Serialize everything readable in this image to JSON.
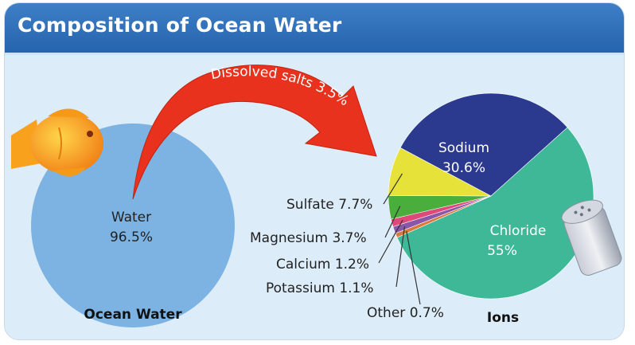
{
  "title": "Composition of Ocean Water",
  "arrow_label": "Dissolved salts 3.5%",
  "chart_data": [
    {
      "type": "pie",
      "caption": "Ocean Water",
      "slices": [
        {
          "label": "Water",
          "value": 96.5,
          "value_text": "96.5%",
          "color": "#7cb3e2"
        },
        {
          "label": "Dissolved salts",
          "value": 3.5,
          "value_text": "3.5%",
          "color": "#e8321e"
        }
      ]
    },
    {
      "type": "pie",
      "caption": "Ions",
      "slices": [
        {
          "label": "Sodium",
          "value": 30.6,
          "value_text": "30.6%",
          "color": "#2b3a8f"
        },
        {
          "label": "Chloride",
          "value": 55,
          "value_text": "55%",
          "color": "#3fb898"
        },
        {
          "label": "Other",
          "value": 0.7,
          "value_text": "0.7%",
          "color": "#d77a3b"
        },
        {
          "label": "Potassium",
          "value": 1.1,
          "value_text": "1.1%",
          "color": "#8a56a8"
        },
        {
          "label": "Calcium",
          "value": 1.2,
          "value_text": "1.2%",
          "color": "#e0487a"
        },
        {
          "label": "Magnesium",
          "value": 3.7,
          "value_text": "3.7%",
          "color": "#4aae3c"
        },
        {
          "label": "Sulfate",
          "value": 7.7,
          "value_text": "7.7%",
          "color": "#e6e23a"
        }
      ]
    }
  ]
}
